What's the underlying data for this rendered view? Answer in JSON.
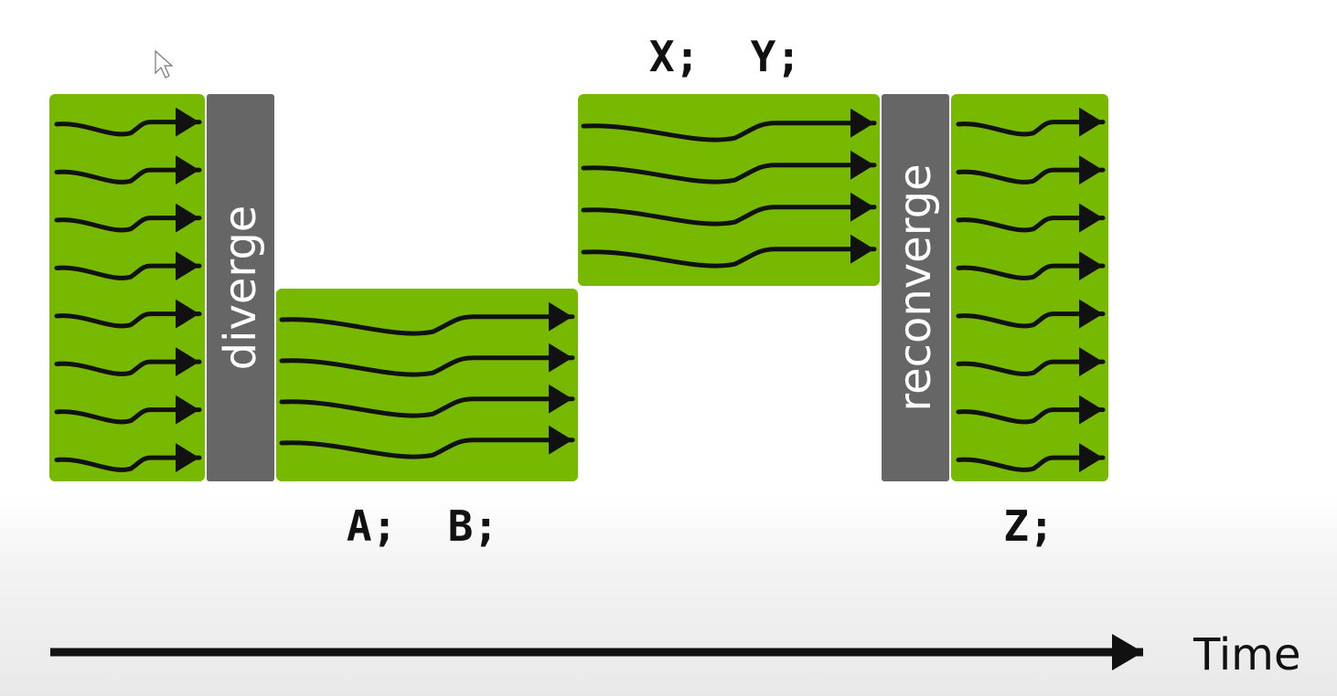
{
  "labels": {
    "diverge": "diverge",
    "reconverge": "reconverge",
    "branch_a": "A;  B;",
    "branch_b": "X;  Y;",
    "after": "Z;",
    "time": "Time"
  },
  "colors": {
    "block_green": "#76b900",
    "bar_gray": "#666666",
    "arrow": "#111111",
    "label_text": "#111111"
  },
  "threads": {
    "total": 8,
    "branch_a": 4,
    "branch_b": 4
  }
}
